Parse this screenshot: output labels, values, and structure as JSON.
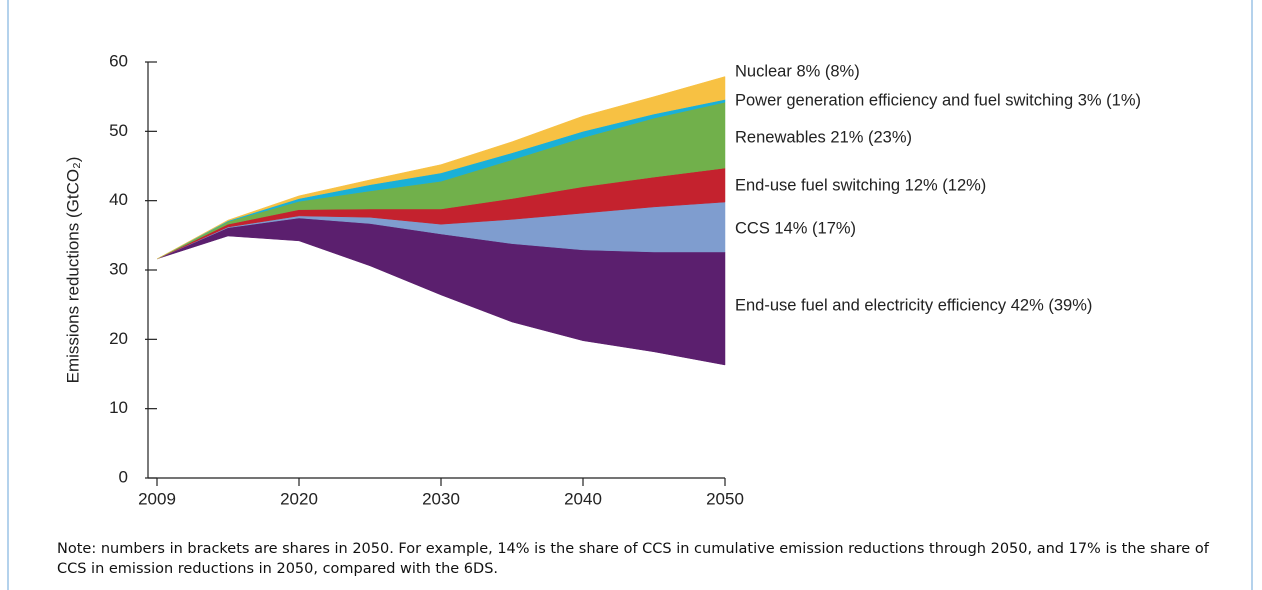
{
  "chart_data": {
    "type": "stacked_area",
    "y_label": "Emissions reductions (GtCO₂)",
    "categories": [
      "2009",
      null,
      "2020",
      null,
      "2030",
      null,
      "2040",
      null,
      "2050"
    ],
    "ylim": [
      0,
      60
    ],
    "yticks": [
      0,
      10,
      20,
      30,
      40,
      50,
      60
    ],
    "series": [
      {
        "color": "#ffffff",
        "values": [
          31.6,
          34.9,
          34.2,
          30.6,
          26.4,
          22.5,
          19.8,
          18.2,
          16.3
        ]
      },
      {
        "name": "End-use fuel and electricity efficiency 42% (39%)",
        "color": "#5b1f6e",
        "values": [
          0,
          1.2,
          3.3,
          6.1,
          8.8,
          11.3,
          13.1,
          14.4,
          16.3
        ]
      },
      {
        "name": "CCS 14% (17%)",
        "color": "#7f9dcf",
        "values": [
          0,
          0.1,
          0.3,
          0.9,
          1.4,
          3.5,
          5.3,
          6.5,
          7.2
        ]
      },
      {
        "name": "End-use fuel switching 12% (12%)",
        "color": "#c4222e",
        "values": [
          0,
          0.4,
          0.9,
          1.2,
          2.2,
          3.0,
          3.8,
          4.3,
          4.9
        ]
      },
      {
        "name": "Renewables 21% (23%)",
        "color": "#71b04b",
        "values": [
          0,
          0.4,
          1.2,
          2.6,
          4.0,
          5.6,
          7.1,
          8.5,
          9.5
        ]
      },
      {
        "name": "Power generation efficiency and fuel switching 3% (1%)",
        "color": "#1ab0d8",
        "values": [
          0,
          0.1,
          0.4,
          0.9,
          1.2,
          1.0,
          0.9,
          0.6,
          0.4
        ]
      },
      {
        "name": "Nuclear 8% (8%)",
        "color": "#f7c143",
        "values": [
          0,
          0.1,
          0.4,
          0.7,
          1.2,
          1.6,
          2.2,
          2.5,
          3.3
        ]
      }
    ],
    "note": "Note: numbers in brackets are shares in 2050. For example, 14% is the share of CCS in cumulative emission reductions through 2050, and 17% is the share of CCS in emission reductions in 2050, compared with the 6DS."
  }
}
